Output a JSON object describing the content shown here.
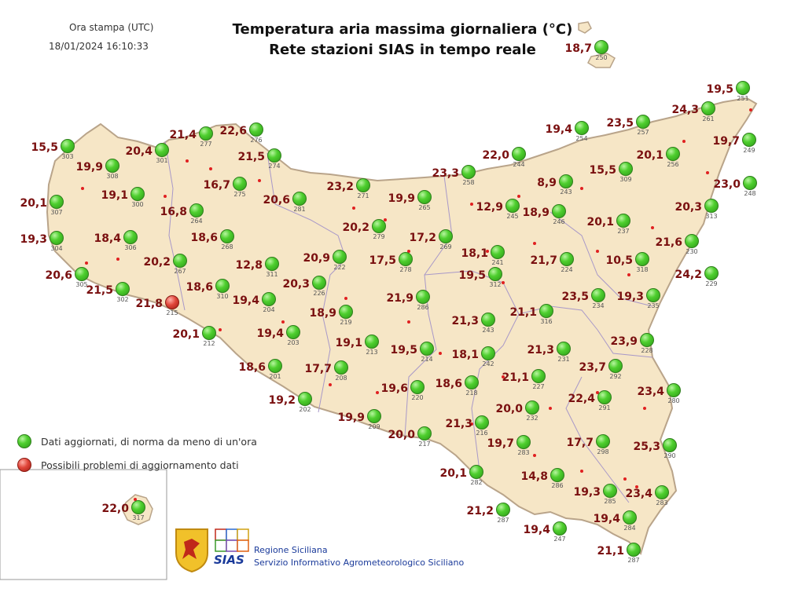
{
  "header": {
    "print_label": "Ora stampa (UTC)",
    "print_time": "18/01/2024 16:10:33",
    "title_line1": "Temperatura aria massima giornaliera (°C)",
    "title_line2": "Rete stazioni SIAS in tempo reale"
  },
  "legend": {
    "ok_label": "Dati aggiornati, di norma da meno di un'ora",
    "problem_label": "Possibili problemi di aggiornamento dati"
  },
  "footer": {
    "line1": "Regione Siciliana",
    "line2": "Servizio Informativo Agrometeorologico Siciliano",
    "logo_text": "SIAS"
  },
  "colors": {
    "land": "#f6e6c6",
    "border": "#b9a48a",
    "province": "#a898c8",
    "value": "#7a1010",
    "id": "#555555",
    "ok": "#3fbf25",
    "problem": "#d8392e"
  },
  "stations": [
    {
      "id": "250",
      "value": "18,7",
      "status": "ok"
    },
    {
      "id": "251",
      "value": "19,5",
      "status": "ok"
    },
    {
      "id": "261",
      "value": "24,3",
      "status": "ok"
    },
    {
      "id": "257",
      "value": "23,5",
      "status": "ok"
    },
    {
      "id": "254",
      "value": "19,4",
      "status": "ok"
    },
    {
      "id": "249",
      "value": "19,7",
      "status": "ok"
    },
    {
      "id": "256",
      "value": "20,1",
      "status": "ok"
    },
    {
      "id": "309",
      "value": "15,5",
      "status": "ok"
    },
    {
      "id": "248",
      "value": "23,0",
      "status": "ok"
    },
    {
      "id": "244",
      "value": "22,0",
      "status": "ok"
    },
    {
      "id": "258",
      "value": "23,3",
      "status": "ok"
    },
    {
      "id": "243",
      "value": "8,9",
      "status": "ok"
    },
    {
      "id": "313",
      "value": "20,3",
      "status": "ok"
    },
    {
      "id": "245",
      "value": "12,9",
      "status": "ok"
    },
    {
      "id": "246",
      "value": "18,9",
      "status": "ok"
    },
    {
      "id": "237",
      "value": "20,1",
      "status": "ok"
    },
    {
      "id": "230",
      "value": "21,6",
      "status": "ok"
    },
    {
      "id": "303",
      "value": "15,5",
      "status": "ok"
    },
    {
      "id": "301",
      "value": "20,4",
      "status": "ok"
    },
    {
      "id": "277",
      "value": "21,4",
      "status": "ok"
    },
    {
      "id": "276",
      "value": "22,6",
      "status": "ok"
    },
    {
      "id": "274",
      "value": "21,5",
      "status": "ok"
    },
    {
      "id": "308",
      "value": "19,9",
      "status": "ok"
    },
    {
      "id": "275",
      "value": "16,7",
      "status": "ok"
    },
    {
      "id": "271",
      "value": "23,2",
      "status": "ok"
    },
    {
      "id": "300",
      "value": "19,1",
      "status": "ok"
    },
    {
      "id": "281",
      "value": "20,6",
      "status": "ok"
    },
    {
      "id": "265",
      "value": "19,9",
      "status": "ok"
    },
    {
      "id": "307",
      "value": "20,1",
      "status": "ok"
    },
    {
      "id": "264",
      "value": "16,8",
      "status": "ok"
    },
    {
      "id": "279",
      "value": "20,2",
      "status": "ok"
    },
    {
      "id": "269",
      "value": "17,2",
      "status": "ok"
    },
    {
      "id": "304",
      "value": "19,3",
      "status": "ok"
    },
    {
      "id": "306",
      "value": "18,4",
      "status": "ok"
    },
    {
      "id": "268",
      "value": "18,6",
      "status": "ok"
    },
    {
      "id": "241",
      "value": "18,1",
      "status": "ok"
    },
    {
      "id": "224",
      "value": "21,7",
      "status": "ok"
    },
    {
      "id": "318",
      "value": "10,5",
      "status": "ok"
    },
    {
      "id": "267",
      "value": "20,2",
      "status": "ok"
    },
    {
      "id": "311",
      "value": "12,8",
      "status": "ok"
    },
    {
      "id": "222",
      "value": "20,9",
      "status": "ok"
    },
    {
      "id": "278",
      "value": "17,5",
      "status": "ok"
    },
    {
      "id": "229",
      "value": "24,2",
      "status": "ok"
    },
    {
      "id": "305",
      "value": "20,6",
      "status": "ok"
    },
    {
      "id": "310",
      "value": "18,6",
      "status": "ok"
    },
    {
      "id": "226",
      "value": "20,3",
      "status": "ok"
    },
    {
      "id": "312",
      "value": "19,5",
      "status": "ok"
    },
    {
      "id": "234",
      "value": "23,5",
      "status": "ok"
    },
    {
      "id": "235",
      "value": "19,3",
      "status": "ok"
    },
    {
      "id": "302",
      "value": "21,5",
      "status": "ok"
    },
    {
      "id": "215",
      "value": "21,8",
      "status": "problem"
    },
    {
      "id": "204",
      "value": "19,4",
      "status": "ok"
    },
    {
      "id": "219",
      "value": "18,9",
      "status": "ok"
    },
    {
      "id": "286",
      "value": "21,9",
      "status": "ok"
    },
    {
      "id": "316",
      "value": "21,1",
      "status": "ok"
    },
    {
      "id": "212",
      "value": "20,1",
      "status": "ok"
    },
    {
      "id": "203",
      "value": "19,4",
      "status": "ok"
    },
    {
      "id": "243",
      "value": "21,3",
      "status": "ok"
    },
    {
      "id": "213",
      "value": "19,1",
      "status": "ok"
    },
    {
      "id": "214",
      "value": "19,5",
      "status": "ok"
    },
    {
      "id": "242",
      "value": "18,1",
      "status": "ok"
    },
    {
      "id": "231",
      "value": "21,3",
      "status": "ok"
    },
    {
      "id": "228",
      "value": "23,9",
      "status": "ok"
    },
    {
      "id": "201",
      "value": "18,6",
      "status": "ok"
    },
    {
      "id": "208",
      "value": "17,7",
      "status": "ok"
    },
    {
      "id": "227",
      "value": "21,1",
      "status": "ok"
    },
    {
      "id": "292",
      "value": "23,7",
      "status": "ok"
    },
    {
      "id": "218",
      "value": "18,6",
      "status": "ok"
    },
    {
      "id": "220",
      "value": "19,6",
      "status": "ok"
    },
    {
      "id": "280",
      "value": "23,4",
      "status": "ok"
    },
    {
      "id": "202",
      "value": "19,2",
      "status": "ok"
    },
    {
      "id": "232",
      "value": "20,0",
      "status": "ok"
    },
    {
      "id": "291",
      "value": "22,4",
      "status": "ok"
    },
    {
      "id": "209",
      "value": "19,9",
      "status": "ok"
    },
    {
      "id": "216",
      "value": "21,3",
      "status": "ok"
    },
    {
      "id": "217",
      "value": "20,0",
      "status": "ok"
    },
    {
      "id": "283",
      "value": "19,7",
      "status": "ok"
    },
    {
      "id": "298",
      "value": "17,7",
      "status": "ok"
    },
    {
      "id": "290",
      "value": "25,3",
      "status": "ok"
    },
    {
      "id": "282",
      "value": "20,1",
      "status": "ok"
    },
    {
      "id": "286",
      "value": "14,8",
      "status": "ok"
    },
    {
      "id": "285",
      "value": "19,3",
      "status": "ok"
    },
    {
      "id": "283",
      "value": "23,4",
      "status": "ok"
    },
    {
      "id": "317",
      "value": "22,0",
      "status": "ok"
    },
    {
      "id": "287",
      "value": "21,2",
      "status": "ok"
    },
    {
      "id": "247",
      "value": "19,4",
      "status": "ok"
    },
    {
      "id": "284",
      "value": "19,4",
      "status": "ok"
    },
    {
      "id": "287",
      "value": "21,1",
      "status": "ok"
    }
  ]
}
